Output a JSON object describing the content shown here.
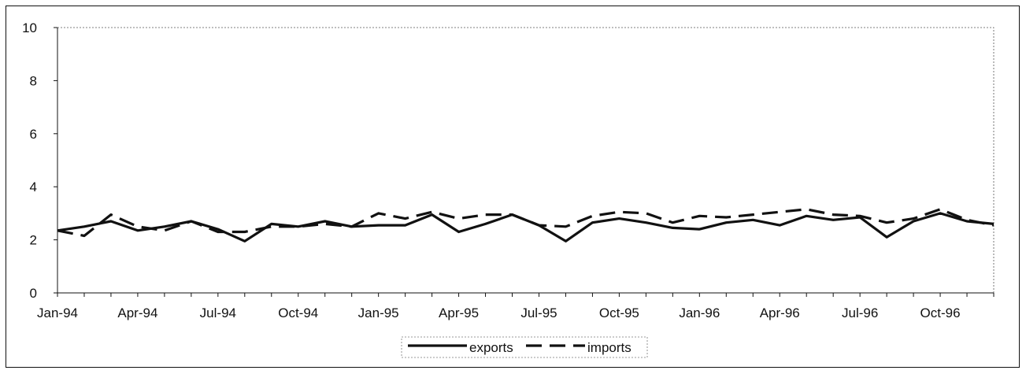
{
  "chart_data": {
    "type": "line",
    "title": "",
    "xlabel": "",
    "ylabel": "",
    "ylim": [
      0,
      10
    ],
    "yticks": [
      "0",
      "2",
      "4",
      "6",
      "8",
      "10"
    ],
    "xtick_labels": [
      "Jan-94",
      "Apr-94",
      "Jul-94",
      "Oct-94",
      "Jan-95",
      "Apr-95",
      "Jul-95",
      "Oct-95",
      "Jan-96",
      "Apr-96",
      "Jul-96",
      "Oct-96"
    ],
    "x": [
      "Jan-94",
      "Feb-94",
      "Mar-94",
      "Apr-94",
      "May-94",
      "Jun-94",
      "Jul-94",
      "Aug-94",
      "Sep-94",
      "Oct-94",
      "Nov-94",
      "Dec-94",
      "Jan-95",
      "Feb-95",
      "Mar-95",
      "Apr-95",
      "May-95",
      "Jun-95",
      "Jul-95",
      "Aug-95",
      "Sep-95",
      "Oct-95",
      "Nov-95",
      "Dec-95",
      "Jan-96",
      "Feb-96",
      "Mar-96",
      "Apr-96",
      "May-96",
      "Jun-96",
      "Jul-96",
      "Aug-96",
      "Sep-96",
      "Oct-96",
      "Nov-96",
      "Dec-96"
    ],
    "series": [
      {
        "name": "exports",
        "style": "solid",
        "values": [
          2.35,
          2.5,
          2.7,
          2.35,
          2.5,
          2.7,
          2.4,
          1.95,
          2.6,
          2.5,
          2.7,
          2.5,
          2.55,
          2.55,
          2.95,
          2.3,
          2.6,
          2.95,
          2.55,
          1.95,
          2.65,
          2.8,
          2.65,
          2.45,
          2.4,
          2.65,
          2.75,
          2.55,
          2.9,
          2.75,
          2.85,
          2.1,
          2.7,
          3.0,
          2.7,
          2.6
        ]
      },
      {
        "name": "imports",
        "style": "dashed",
        "values": [
          2.35,
          2.15,
          2.95,
          2.5,
          2.35,
          2.7,
          2.3,
          2.3,
          2.5,
          2.5,
          2.6,
          2.5,
          3.0,
          2.8,
          3.05,
          2.8,
          2.95,
          2.95,
          2.55,
          2.5,
          2.9,
          3.05,
          3.0,
          2.65,
          2.9,
          2.85,
          2.95,
          3.05,
          3.15,
          2.95,
          2.9,
          2.65,
          2.8,
          3.15,
          2.75,
          2.55
        ]
      }
    ],
    "legend": {
      "placement": "bottom-center",
      "entries": [
        "exports",
        "imports"
      ]
    },
    "grid": false,
    "colors": {
      "line": "#111111",
      "background": "#ffffff"
    }
  }
}
